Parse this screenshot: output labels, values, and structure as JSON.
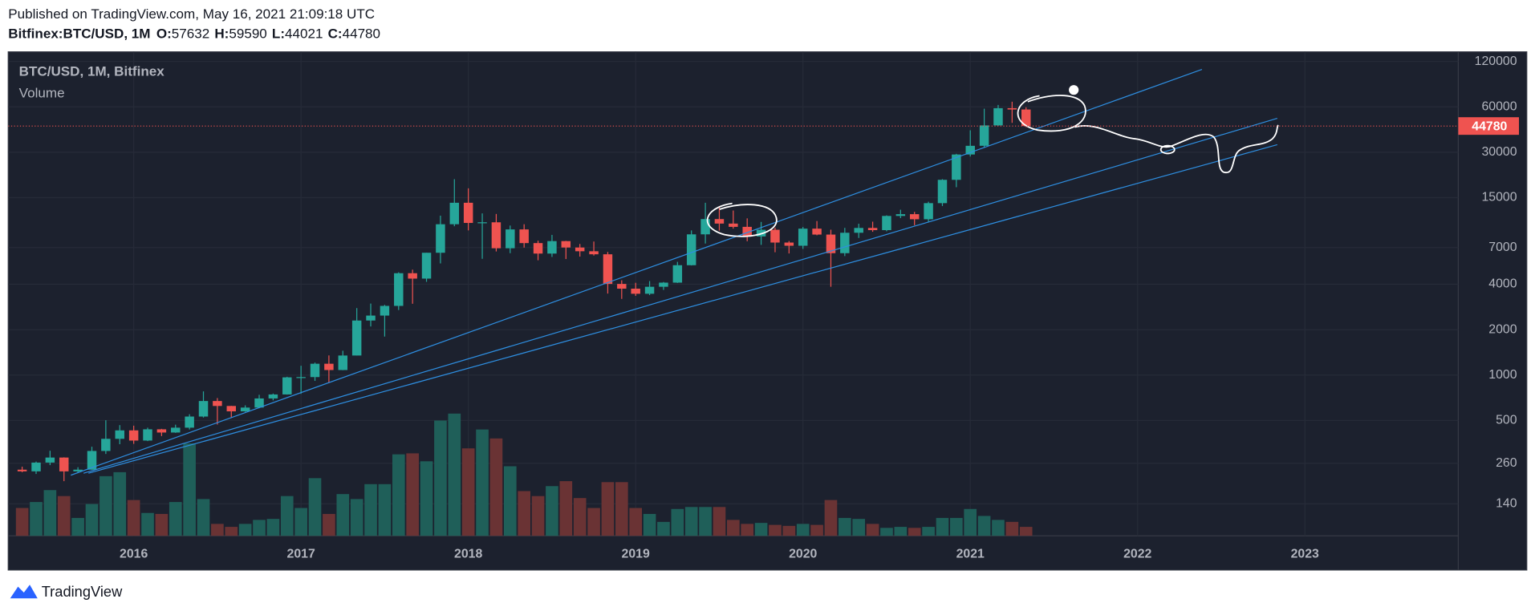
{
  "header": {
    "published": "Published on TradingView.com, May 16, 2021 21:09:18 UTC",
    "symbol": "Bitfinex:BTC/USD, 1M",
    "ohlc_labels": [
      "O:",
      "H:",
      "L:",
      "C:"
    ]
  },
  "footer": {
    "brand": "TradingView"
  },
  "chart_data": {
    "type": "candlestick",
    "price_name": "BTC/USD, 1M, Bitfinex",
    "volume_name": "Volume",
    "x": [
      "2015-05",
      "2015-06",
      "2015-07",
      "2015-08",
      "2015-09",
      "2015-10",
      "2015-11",
      "2015-12",
      "2016-01",
      "2016-02",
      "2016-03",
      "2016-04",
      "2016-05",
      "2016-06",
      "2016-07",
      "2016-08",
      "2016-09",
      "2016-10",
      "2016-11",
      "2016-12",
      "2017-01",
      "2017-02",
      "2017-03",
      "2017-04",
      "2017-05",
      "2017-06",
      "2017-07",
      "2017-08",
      "2017-09",
      "2017-10",
      "2017-11",
      "2017-12",
      "2018-01",
      "2018-02",
      "2018-03",
      "2018-04",
      "2018-05",
      "2018-06",
      "2018-07",
      "2018-08",
      "2018-09",
      "2018-10",
      "2018-11",
      "2018-12",
      "2019-01",
      "2019-02",
      "2019-03",
      "2019-04",
      "2019-05",
      "2019-06",
      "2019-07",
      "2019-08",
      "2019-09",
      "2019-10",
      "2019-11",
      "2019-12",
      "2020-01",
      "2020-02",
      "2020-03",
      "2020-04",
      "2020-05",
      "2020-06",
      "2020-07",
      "2020-08",
      "2020-09",
      "2020-10",
      "2020-11",
      "2020-12",
      "2021-01",
      "2021-02",
      "2021-03",
      "2021-04",
      "2021-05"
    ],
    "open": [
      236,
      230,
      263,
      284,
      230,
      236,
      314,
      378,
      430,
      368,
      437,
      416,
      448,
      531,
      673,
      624,
      575,
      609,
      700,
      744,
      966,
      970,
      1189,
      1080,
      1348,
      2300,
      2480,
      2875,
      4735,
      4360,
      6470,
      10000,
      13880,
      10200,
      10300,
      6930,
      9240,
      7500,
      6390,
      7730,
      7010,
      6620,
      6320,
      4020,
      3740,
      3460,
      3850,
      4100,
      5350,
      8570,
      10820,
      10100,
      9610,
      8300,
      9190,
      7560,
      7200,
      9350,
      8540,
      6430,
      8780,
      9450,
      9140,
      11350,
      11660,
      10790,
      13800,
      19700,
      29000,
      33110,
      45210,
      58800,
      57632
    ],
    "high": [
      247,
      267,
      315,
      285,
      245,
      335,
      502,
      466,
      462,
      448,
      440,
      469,
      550,
      780,
      704,
      625,
      630,
      740,
      754,
      975,
      1153,
      1210,
      1350,
      1450,
      2780,
      2980,
      2920,
      4800,
      5000,
      6470,
      11400,
      19890,
      17300,
      11800,
      11700,
      9800,
      10000,
      7780,
      8500,
      7760,
      7400,
      7680,
      6550,
      4250,
      4090,
      4200,
      4140,
      5630,
      9100,
      13880,
      13190,
      12330,
      10940,
      10360,
      9500,
      7740,
      9590,
      10500,
      9200,
      9460,
      10080,
      10400,
      11450,
      12480,
      12080,
      14100,
      19900,
      29300,
      41950,
      58330,
      61780,
      64900,
      59590
    ],
    "low": [
      227,
      221,
      253,
      198,
      224,
      236,
      300,
      348,
      350,
      365,
      394,
      414,
      436,
      523,
      470,
      520,
      570,
      603,
      680,
      742,
      751,
      915,
      890,
      1077,
      1348,
      2100,
      1800,
      2700,
      2970,
      4150,
      5500,
      9700,
      9100,
      5900,
      6600,
      6430,
      7000,
      5770,
      6070,
      5880,
      6100,
      6200,
      3470,
      3200,
      3350,
      3390,
      3670,
      4080,
      5330,
      7450,
      9070,
      9350,
      7710,
      7300,
      6520,
      6400,
      6860,
      8450,
      3850,
      6150,
      8110,
      8910,
      8980,
      10980,
      9850,
      10400,
      13200,
      17600,
      28130,
      32300,
      45000,
      47000,
      44021
    ],
    "close": [
      230,
      263,
      284,
      230,
      236,
      314,
      378,
      430,
      368,
      437,
      416,
      448,
      531,
      673,
      624,
      575,
      609,
      700,
      744,
      966,
      970,
      1189,
      1080,
      1348,
      2300,
      2480,
      2875,
      4735,
      4360,
      6470,
      10000,
      13880,
      10200,
      10300,
      6930,
      9240,
      7500,
      6390,
      7730,
      7010,
      6620,
      6320,
      4020,
      3740,
      3460,
      3850,
      4100,
      5350,
      8570,
      10820,
      10100,
      9610,
      8300,
      9190,
      7560,
      7200,
      9350,
      8540,
      6430,
      8780,
      9450,
      9140,
      11350,
      11660,
      10790,
      13800,
      19700,
      29000,
      33110,
      45210,
      58800,
      57632,
      44780
    ],
    "volume": [
      28,
      34,
      46,
      40,
      18,
      32,
      60,
      64,
      36,
      23,
      22,
      34,
      93,
      37,
      12,
      9,
      12,
      16,
      17,
      40,
      28,
      58,
      22,
      42,
      37,
      52,
      52,
      82,
      83,
      75,
      116,
      123,
      88,
      107,
      98,
      70,
      45,
      40,
      50,
      55,
      38,
      28,
      54,
      54,
      28,
      22,
      14,
      27,
      29,
      29,
      29,
      16,
      12,
      13,
      11,
      10,
      12,
      11,
      36,
      18,
      17,
      12,
      8,
      9,
      8,
      9,
      18,
      18,
      27,
      20,
      16,
      14,
      9
    ],
    "up_color": "#26a69a",
    "down_color": "#ef5350",
    "volume_up_color": "#1f5f59",
    "volume_down_color": "#6a3334",
    "log_scale": true,
    "grid": true,
    "ylim": [
      86,
      139000
    ],
    "yticks": [
      140,
      260,
      500,
      1000,
      2000,
      4000,
      7000,
      15000,
      30000,
      60000,
      120000
    ],
    "xlim": [
      "2015-04",
      "2023-12"
    ],
    "xticks": [
      {
        "value": "2016-01",
        "label": "2016"
      },
      {
        "value": "2017-01",
        "label": "2017"
      },
      {
        "value": "2018-01",
        "label": "2018"
      },
      {
        "value": "2019-01",
        "label": "2019"
      },
      {
        "value": "2020-01",
        "label": "2020"
      },
      {
        "value": "2021-01",
        "label": "2021"
      },
      {
        "value": "2022-01",
        "label": "2022"
      },
      {
        "value": "2023-01",
        "label": "2023"
      }
    ],
    "last_price_color": "#ef5350"
  }
}
